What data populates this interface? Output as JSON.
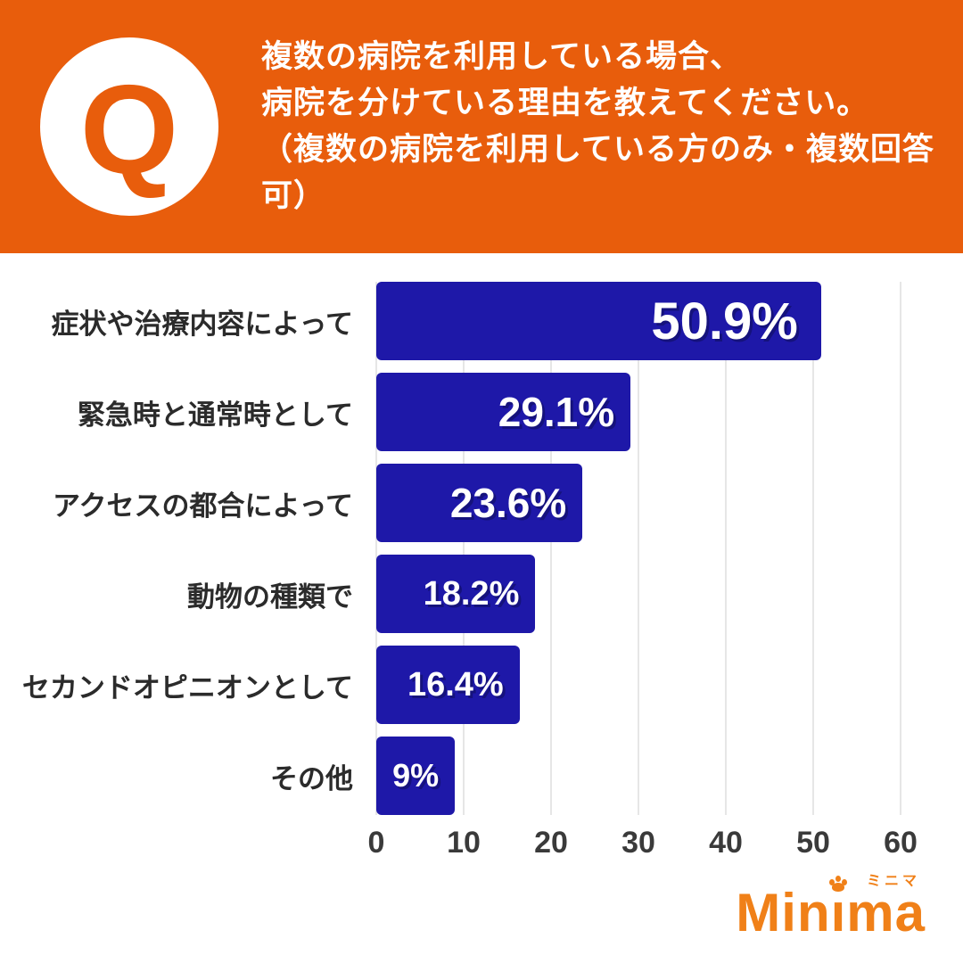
{
  "header": {
    "q_label": "Q",
    "title_lines": [
      "複数の病院を利用している場合、",
      "病院を分けている理由を教えてください。",
      "（複数の病院を利用している方のみ・複数回答可）"
    ]
  },
  "chart_data": {
    "type": "bar",
    "orientation": "horizontal",
    "title": "複数の病院を利用している場合、病院を分けている理由を教えてください。（複数の病院を利用している方のみ・複数回答可）",
    "categories": [
      "症状や治療内容によって",
      "緊急時と通常時として",
      "アクセスの都合によって",
      "動物の種類で",
      "セカンドオピニオンとして",
      "その他"
    ],
    "values": [
      50.9,
      29.1,
      23.6,
      18.2,
      16.4,
      9
    ],
    "value_labels": [
      "50.9%",
      "29.1%",
      "23.6%",
      "18.2%",
      "16.4%",
      "9%"
    ],
    "xlabel": "",
    "ylabel": "",
    "xlim": [
      0,
      60
    ],
    "xticks": [
      0,
      10,
      20,
      30,
      40,
      50,
      60
    ],
    "grid": true,
    "legend": false,
    "bar_color": "#1e18a8"
  },
  "logo": {
    "text": "Minima",
    "ruby": "ミニマ",
    "color": "#f08018"
  },
  "colors": {
    "header_bg": "#e85d0c",
    "bar": "#1e18a8",
    "gridline": "#e6e6e6"
  }
}
